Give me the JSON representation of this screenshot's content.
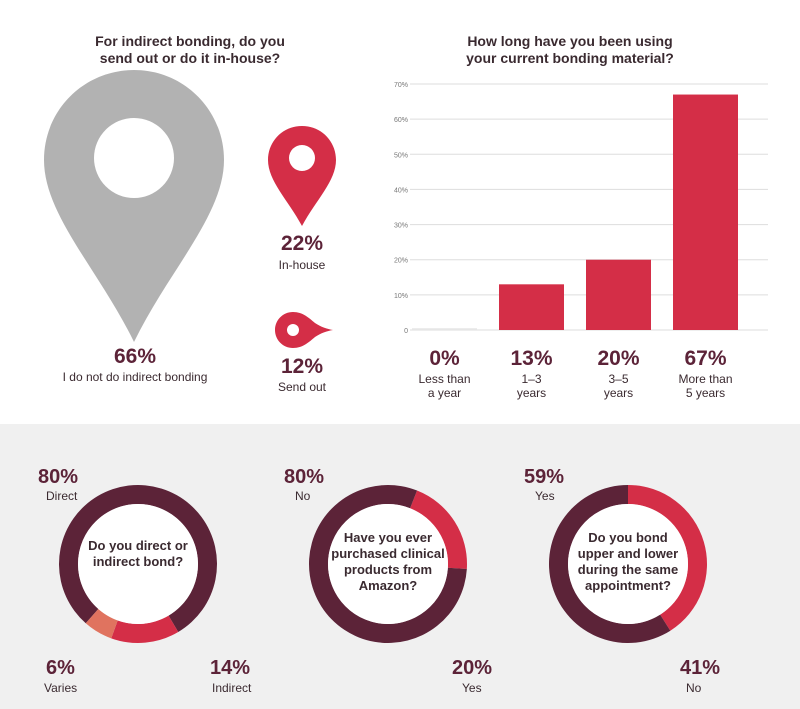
{
  "colors": {
    "maroon": "#5c2338",
    "red": "#d42e47",
    "salmon": "#e0735f",
    "grey": "#b2b2b2",
    "dark_text": "#3a2a30"
  },
  "pins": {
    "title": "For indirect bonding, do you\nsend out or do it in-house?",
    "items": [
      {
        "pct": "66%",
        "label": "I do not do indirect bonding",
        "icon": "location-pin-icon"
      },
      {
        "pct": "22%",
        "label": "In-house",
        "icon": "location-pin-icon"
      },
      {
        "pct": "12%",
        "label": "Send out",
        "icon": "location-pin-icon"
      }
    ]
  },
  "chart_data": [
    {
      "type": "bar",
      "title": "How long have you been using\nyour current bonding material?",
      "categories": [
        "Less than\na year",
        "1–3\nyears",
        "3–5\nyears",
        "More than\n5 years"
      ],
      "values": [
        0.5,
        13,
        20,
        67
      ],
      "value_labels": [
        "0%",
        "13%",
        "20%",
        "67%"
      ],
      "ylim": [
        0,
        70
      ],
      "yticks": [
        0,
        10,
        20,
        30,
        40,
        50,
        60,
        70
      ],
      "ytick_labels": [
        "0",
        "10%",
        "20%",
        "30%",
        "40%",
        "50%",
        "60%",
        "70%"
      ],
      "grid": true
    },
    {
      "type": "pie",
      "question": "Do you direct or\nindirect bond?",
      "slices": [
        {
          "pct": 80,
          "pct_label": "80%",
          "label": "Direct",
          "color": "#5c2338"
        },
        {
          "pct": 14,
          "pct_label": "14%",
          "label": "Indirect",
          "color": "#d42e47"
        },
        {
          "pct": 6,
          "pct_label": "6%",
          "label": "Varies",
          "color": "#e0735f"
        }
      ]
    },
    {
      "type": "pie",
      "question": "Have you ever\npurchased clinical\nproducts from\nAmazon?",
      "slices": [
        {
          "pct": 80,
          "pct_label": "80%",
          "label": "No",
          "color": "#5c2338"
        },
        {
          "pct": 20,
          "pct_label": "20%",
          "label": "Yes",
          "color": "#d42e47"
        }
      ]
    },
    {
      "type": "pie",
      "question": "Do you bond\nupper and lower\nduring the same\nappointment?",
      "slices": [
        {
          "pct": 41,
          "pct_label": "41%",
          "label": "No",
          "color": "#d42e47"
        },
        {
          "pct": 59,
          "pct_label": "59%",
          "label": "Yes",
          "color": "#5c2338"
        }
      ]
    }
  ]
}
